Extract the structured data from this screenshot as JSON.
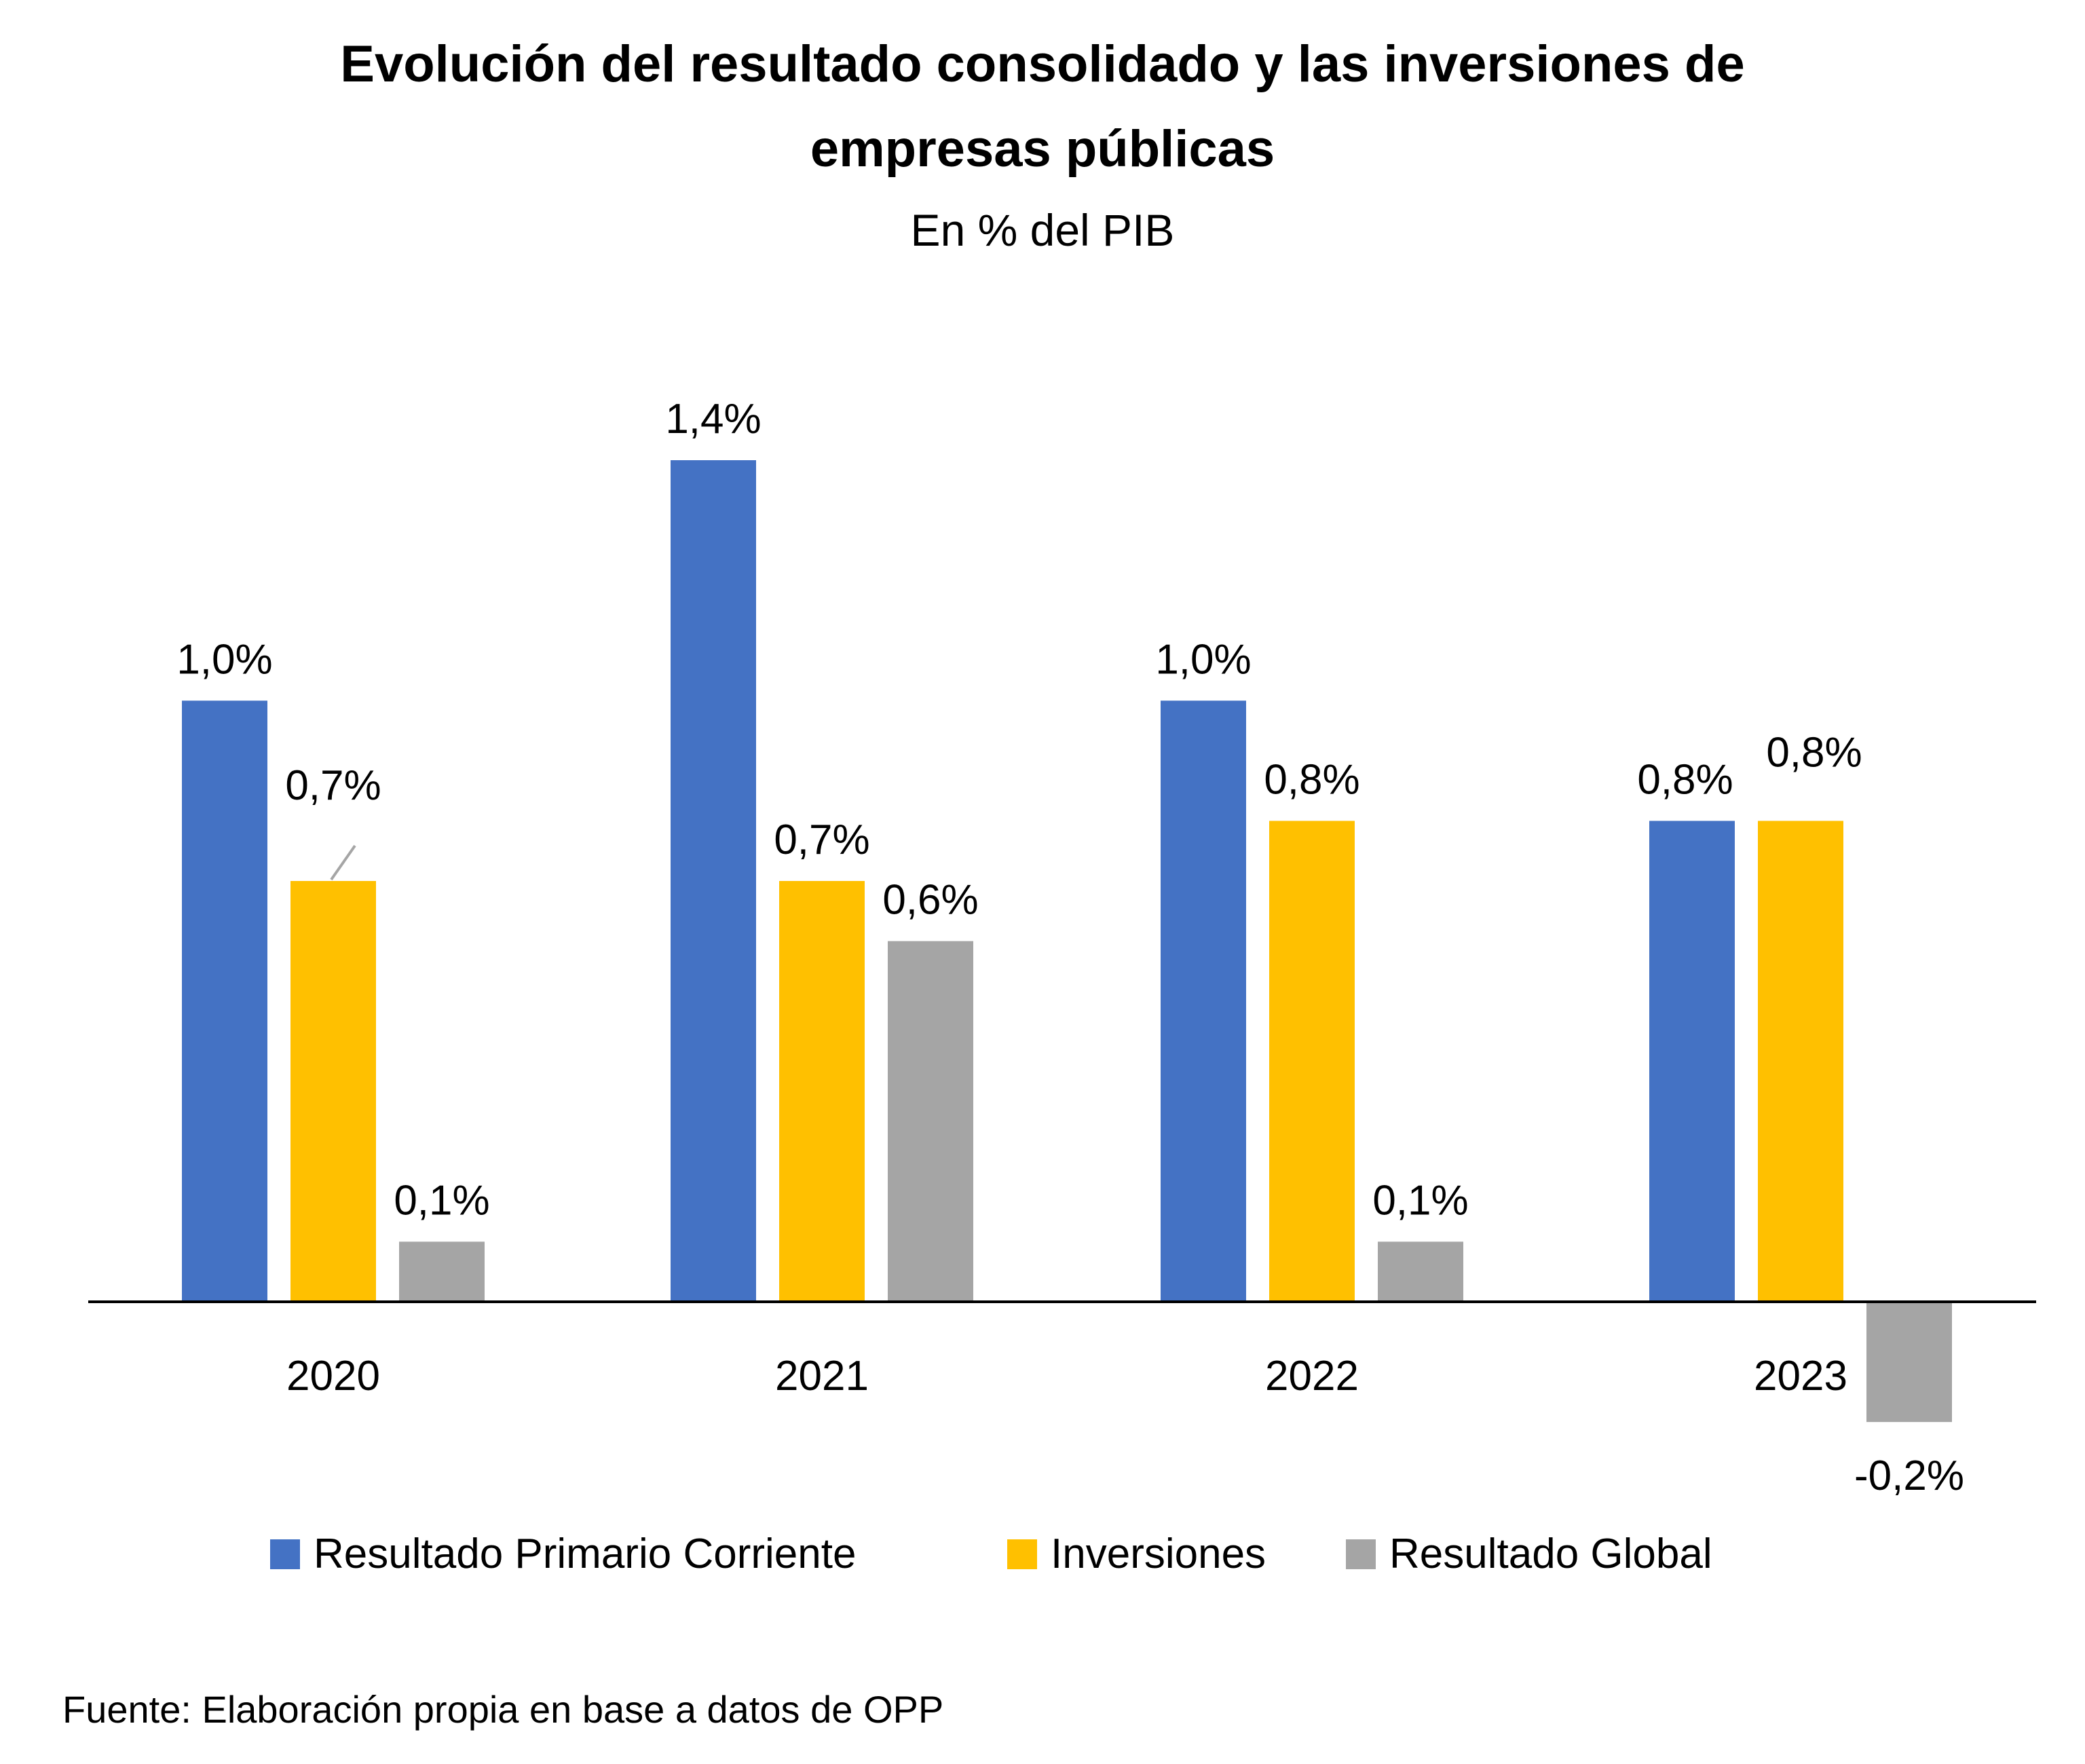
{
  "chart_data": {
    "type": "bar",
    "title_line1": "Evolución del resultado consolidado y las inversiones de",
    "title_line2": "empresas públicas",
    "subtitle": "En % del PIB",
    "categories": [
      "2020",
      "2021",
      "2022",
      "2023"
    ],
    "series": [
      {
        "name": "Resultado Primario Corriente",
        "color": "#4472C4",
        "values": [
          1.0,
          1.4,
          1.0,
          0.8
        ],
        "labels": [
          "1,0%",
          "1,4%",
          "1,0%",
          "0,8%"
        ]
      },
      {
        "name": "Inversiones",
        "color": "#FFC000",
        "values": [
          0.7,
          0.7,
          0.8,
          0.8
        ],
        "labels": [
          "0,7%",
          "0,7%",
          "0,8%",
          "0,8%"
        ]
      },
      {
        "name": "Resultado Global",
        "color": "#A5A5A5",
        "values": [
          0.1,
          0.6,
          0.1,
          -0.2
        ],
        "labels": [
          "0,1%",
          "0,6%",
          "0,1%",
          "-0,2%"
        ]
      }
    ],
    "ylim": [
      -0.3,
      1.6
    ],
    "grid": false,
    "legend_position": "bottom",
    "source": "Fuente: Elaboración propia en base a datos de OPP"
  }
}
